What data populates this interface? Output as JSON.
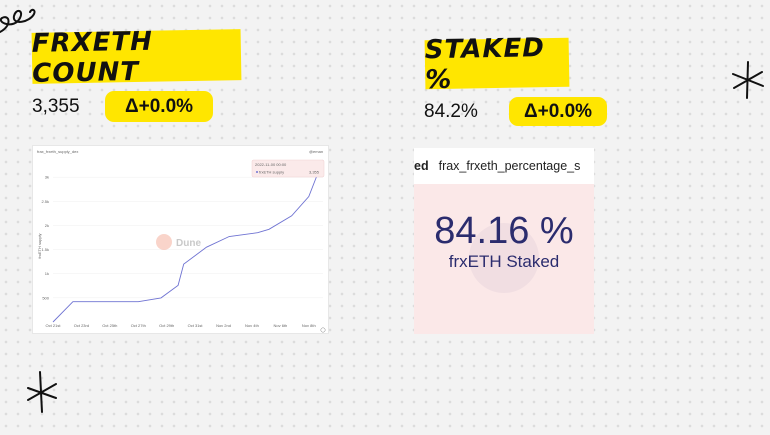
{
  "cards": {
    "count": {
      "title": "FRXETH COUNT",
      "value": "3,355",
      "delta": "Δ+0.0%"
    },
    "staked": {
      "title": "STAKED %",
      "value": "84.2%",
      "delta": "Δ+0.0%"
    }
  },
  "chart_panel": {
    "title": "frax_frxeth_supply_dex",
    "author": "@eman",
    "watermark": "Dune",
    "tooltip": {
      "date": "2022-11-00 00:00",
      "series": "frxETH supply",
      "value": "3,355"
    }
  },
  "chart_data": {
    "type": "line",
    "title": "frax_frxeth_supply_dex",
    "ylabel": "frxETH supply",
    "y_ticks": [
      "500",
      "1k",
      "1.5k",
      "2k",
      "2.5k",
      "3k"
    ],
    "ylim": [
      0,
      3355
    ],
    "x_ticks": [
      "Oct 21st",
      "Oct 23rd",
      "Oct 25th",
      "Oct 27th",
      "Oct 29th",
      "Oct 31st",
      "Nov 2nd",
      "Nov 4th",
      "Nov 6th",
      "Nov 8th"
    ],
    "series": [
      {
        "name": "frxETH supply",
        "x": [
          0,
          0.7,
          3,
          3.8,
          4.4,
          4.6,
          5.4,
          6.2,
          7.2,
          7.6,
          8.4,
          9,
          9.5
        ],
        "y": [
          0,
          420,
          420,
          500,
          760,
          1200,
          1550,
          1770,
          1850,
          1920,
          2200,
          2600,
          3355
        ]
      }
    ],
    "color": "#6f73d2",
    "grid": "horizontal"
  },
  "counter_panel": {
    "header_prefix": "ed",
    "header_title": "frax_frxeth_percentage_s",
    "value": "84.16 %",
    "subtitle": "frxETH Staked"
  }
}
